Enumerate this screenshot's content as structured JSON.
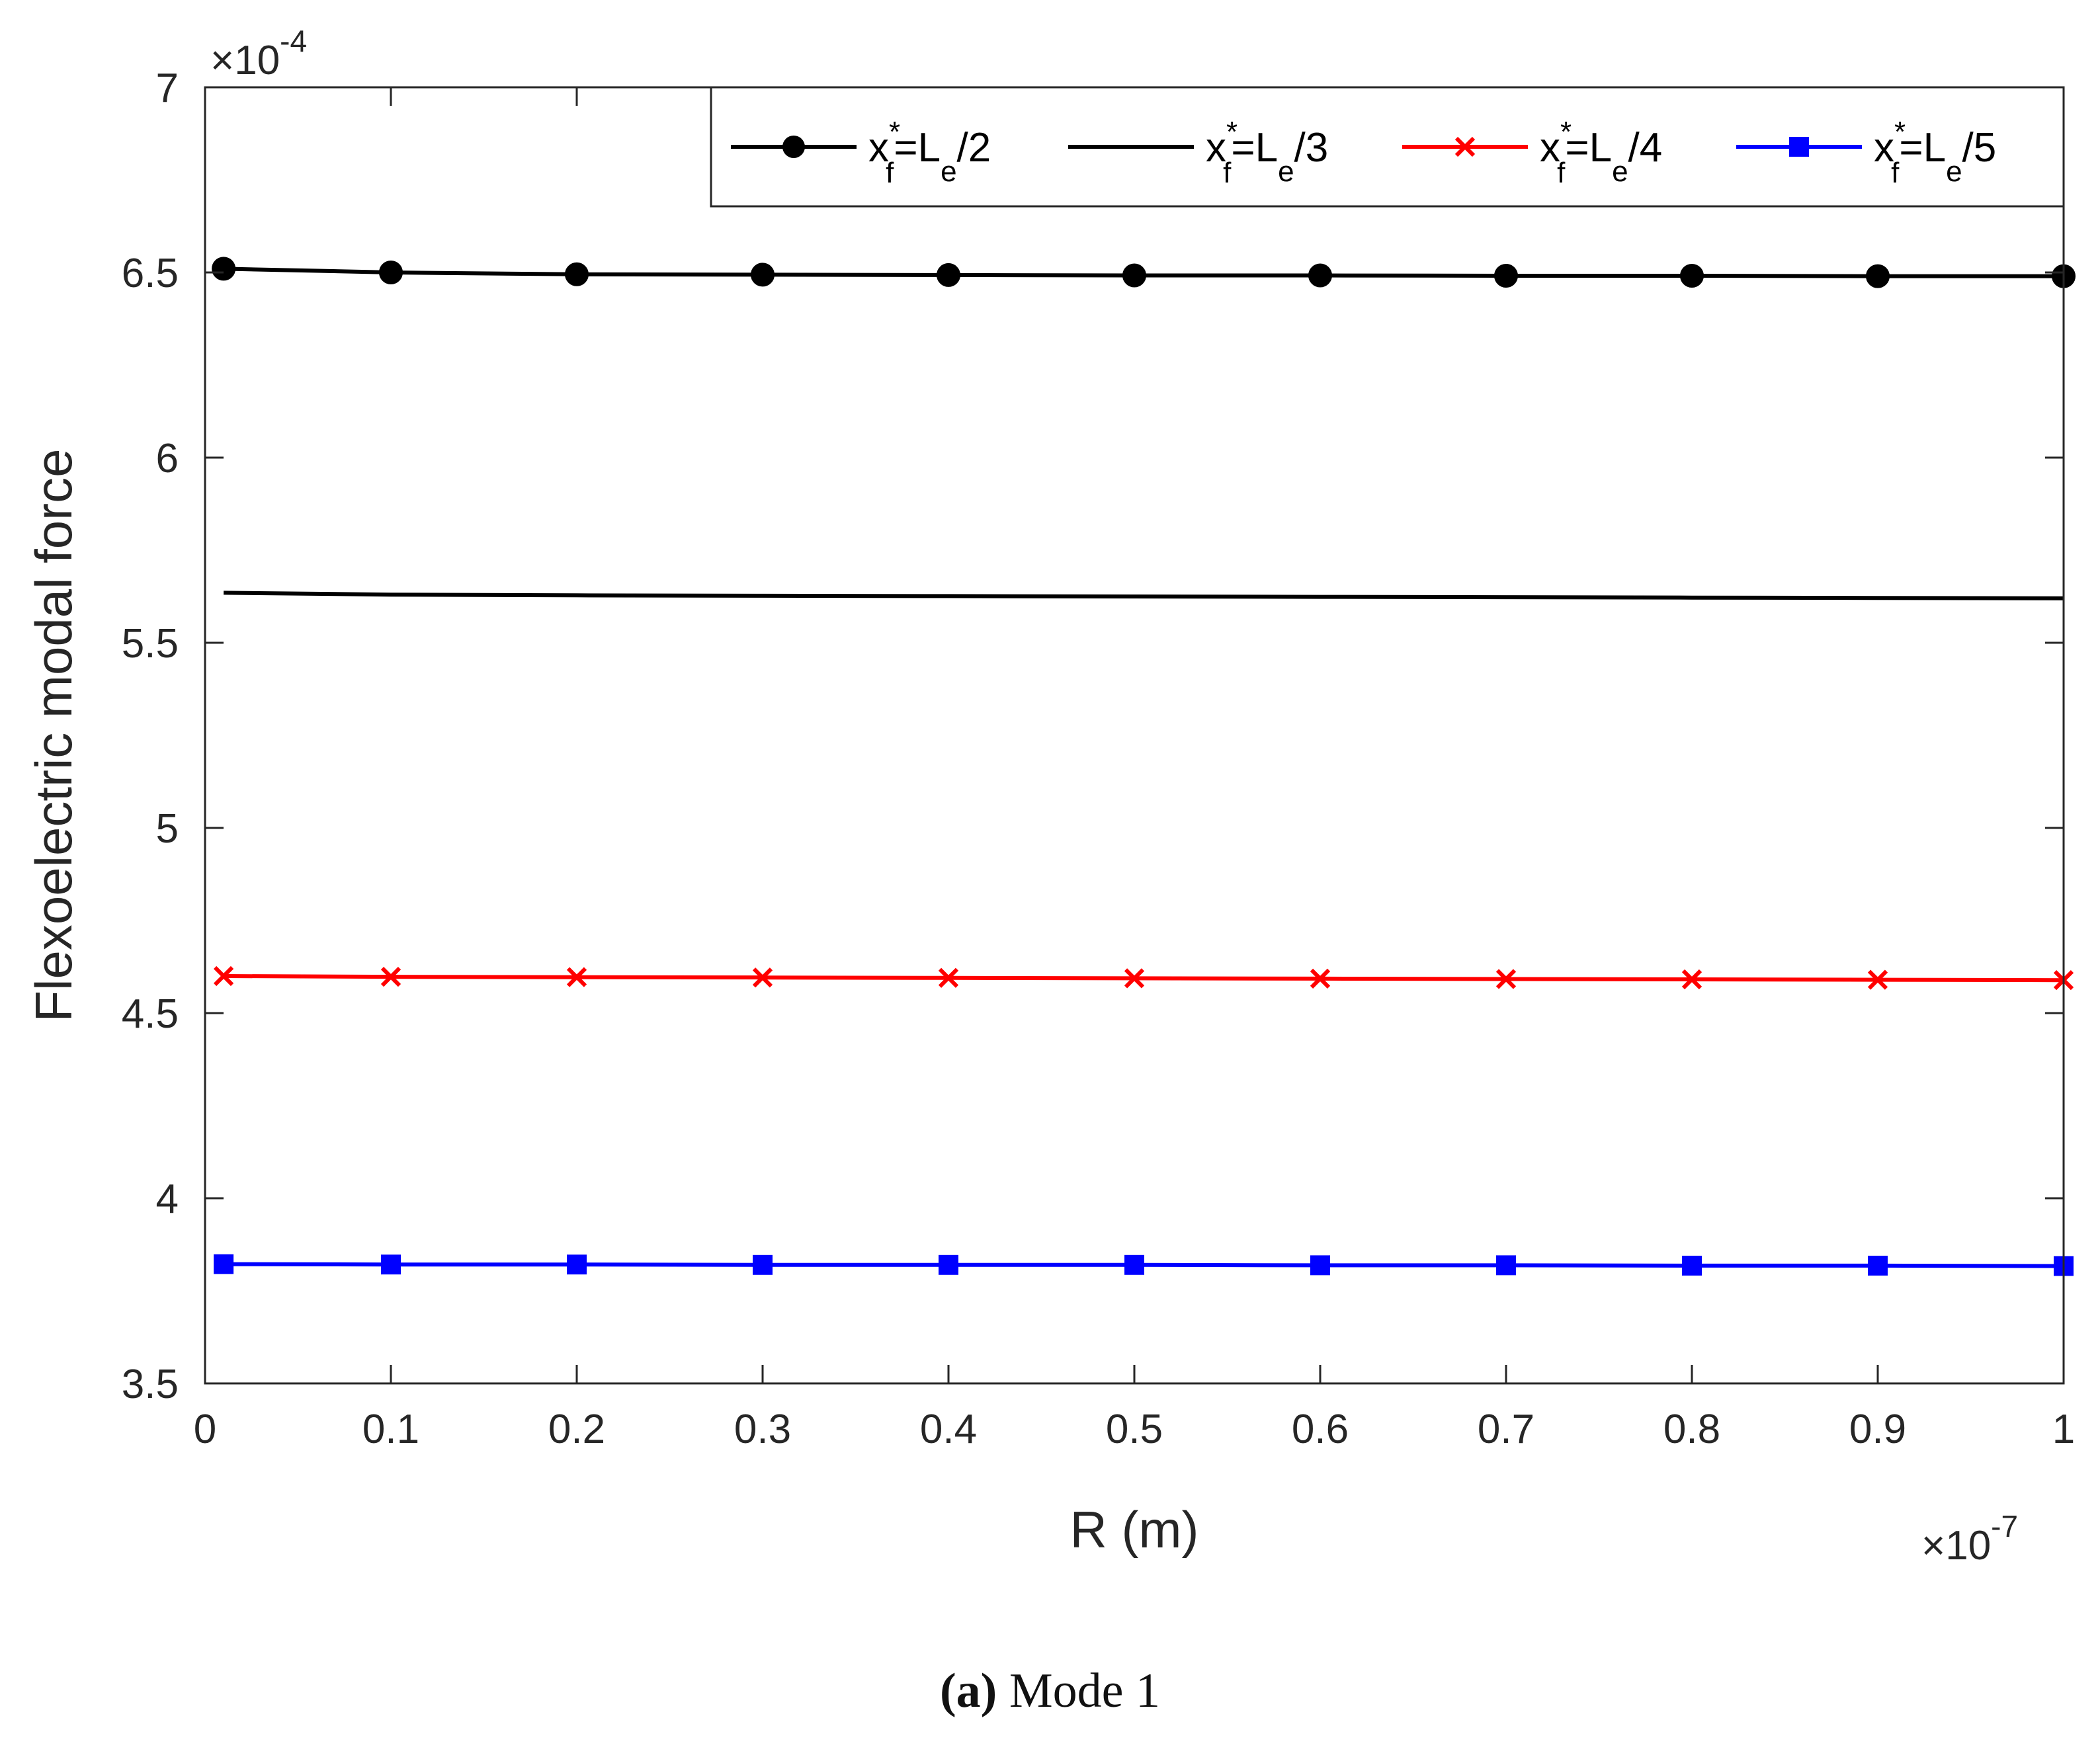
{
  "chart_data": {
    "type": "line",
    "x_multiplier": "×10",
    "x_multiplier_exp": "-7",
    "y_multiplier": "×10",
    "y_multiplier_exp": "-4",
    "xlabel": "R (m)",
    "ylabel": "Flexoelectric modal force",
    "xlim": [
      0,
      1
    ],
    "ylim": [
      3.5,
      7
    ],
    "x_ticks": [
      0,
      0.1,
      0.2,
      0.3,
      0.4,
      0.5,
      0.6,
      0.7,
      0.8,
      0.9,
      1
    ],
    "x_tick_labels": [
      "0",
      "0.1",
      "0.2",
      "0.3",
      "0.4",
      "0.5",
      "0.6",
      "0.7",
      "0.8",
      "0.9",
      "1"
    ],
    "y_ticks": [
      3.5,
      4,
      4.5,
      5,
      5.5,
      6,
      6.5,
      7
    ],
    "y_tick_labels": [
      "3.5",
      "4",
      "4.5",
      "5",
      "5.5",
      "6",
      "6.5",
      "7"
    ],
    "grid": false,
    "legend_position": "top-right",
    "x": [
      0.01,
      0.1,
      0.2,
      0.3,
      0.4,
      0.5,
      0.6,
      0.7,
      0.8,
      0.9,
      1.0
    ],
    "series": [
      {
        "name": "x_f*=L_e/2",
        "legend": {
          "base": "x",
          "sup": "*",
          "sub": "f",
          "mid": "=L",
          "sub2": "e",
          "tail": "/2"
        },
        "color": "#000000",
        "marker": "circle",
        "values": [
          6.51,
          6.5,
          6.495,
          6.494,
          6.493,
          6.492,
          6.492,
          6.491,
          6.491,
          6.49,
          6.49
        ]
      },
      {
        "name": "x_f*=L_e/3",
        "legend": {
          "base": "x",
          "sup": "*",
          "sub": "f",
          "mid": "=L",
          "sub2": "e",
          "tail": "/3"
        },
        "color": "#000000",
        "marker": "none",
        "values": [
          5.635,
          5.63,
          5.628,
          5.627,
          5.626,
          5.625,
          5.624,
          5.623,
          5.622,
          5.621,
          5.62
        ]
      },
      {
        "name": "x_f*=L_e/4",
        "legend": {
          "base": "x",
          "sup": "*",
          "sub": "f",
          "mid": "=L",
          "sub2": "e",
          "tail": "/4"
        },
        "color": "#ff0000",
        "marker": "x",
        "values": [
          4.6,
          4.598,
          4.597,
          4.596,
          4.595,
          4.594,
          4.593,
          4.592,
          4.591,
          4.59,
          4.589
        ]
      },
      {
        "name": "x_f*=L_e/5",
        "legend": {
          "base": "x",
          "sup": "*",
          "sub": "f",
          "mid": "=L",
          "sub2": "e",
          "tail": "/5"
        },
        "color": "#0000ff",
        "marker": "square",
        "values": [
          3.822,
          3.821,
          3.821,
          3.82,
          3.82,
          3.82,
          3.819,
          3.819,
          3.818,
          3.818,
          3.817
        ]
      }
    ]
  },
  "caption": {
    "label": "(a)",
    "text": "Mode 1"
  }
}
